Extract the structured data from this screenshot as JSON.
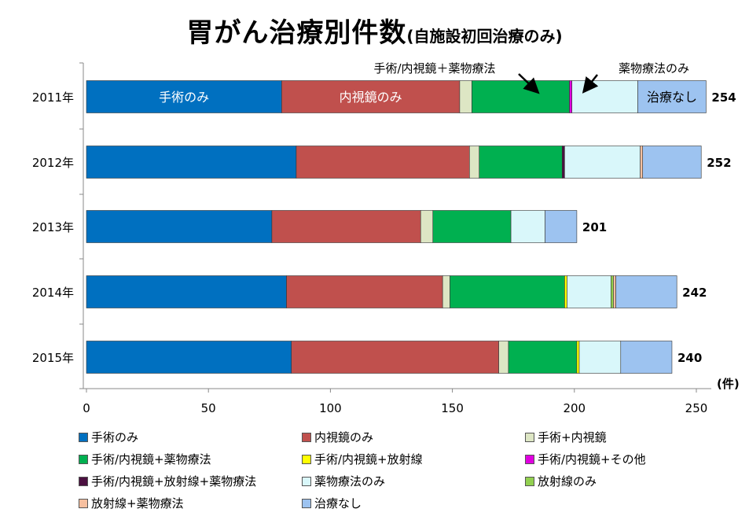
{
  "title": "胃がん治療別件数",
  "subtitle": "(自施設初回治療のみ)",
  "chart_data": {
    "type": "bar",
    "orientation": "horizontal",
    "stacked": true,
    "title": "胃がん治療別件数(自施設初回治療のみ)",
    "unit_label": "(件)",
    "xlim": [
      0,
      250
    ],
    "xticks": [
      0,
      50,
      100,
      150,
      200,
      250
    ],
    "categories": [
      "2011年",
      "2012年",
      "2013年",
      "2014年",
      "2015年"
    ],
    "totals": [
      254,
      252,
      201,
      242,
      240
    ],
    "series": [
      {
        "name": "手術のみ",
        "color": "#0070C0",
        "values": [
          80,
          86,
          76,
          82,
          84
        ]
      },
      {
        "name": "内視鏡のみ",
        "color": "#C0504D",
        "values": [
          73,
          71,
          61,
          64,
          85
        ]
      },
      {
        "name": "手術+内視鏡",
        "color": "#DDE6C4",
        "values": [
          5,
          4,
          5,
          3,
          4
        ]
      },
      {
        "name": "手術/内視鏡+薬物療法",
        "color": "#00B050",
        "values": [
          40,
          34,
          32,
          47,
          28
        ]
      },
      {
        "name": "手術/内視鏡+放射線",
        "color": "#FFFF00",
        "values": [
          0,
          0,
          0,
          1,
          1
        ]
      },
      {
        "name": "手術/内視鏡+その他",
        "color": "#E000E0",
        "values": [
          1,
          0,
          0,
          0,
          0
        ]
      },
      {
        "name": "手術/内視鏡+放射線+薬物療法",
        "color": "#4B1040",
        "values": [
          0,
          1,
          0,
          0,
          0
        ]
      },
      {
        "name": "薬物療法のみ",
        "color": "#D9F7FA",
        "values": [
          27,
          31,
          14,
          18,
          17
        ]
      },
      {
        "name": "放射線のみ",
        "color": "#92D050",
        "values": [
          0,
          0,
          0,
          1,
          0
        ]
      },
      {
        "name": "放射線+薬物療法",
        "color": "#F7C0A0",
        "values": [
          0,
          1,
          0,
          1,
          0
        ]
      },
      {
        "name": "治療なし",
        "color": "#9DC3F0",
        "values": [
          28,
          24,
          13,
          25,
          21
        ]
      }
    ],
    "in_bar_labels": [
      {
        "text": "手術のみ",
        "series": 0,
        "category": 0
      },
      {
        "text": "内視鏡のみ",
        "series": 1,
        "category": 0
      },
      {
        "text": "治療なし",
        "series": 10,
        "category": 0
      }
    ],
    "annotations": [
      {
        "text": "手術/内視鏡＋薬物療法",
        "points_to_series": 3
      },
      {
        "text": "薬物療法のみ",
        "points_to_series": 7
      }
    ],
    "grid": false,
    "legend_position": "bottom"
  }
}
